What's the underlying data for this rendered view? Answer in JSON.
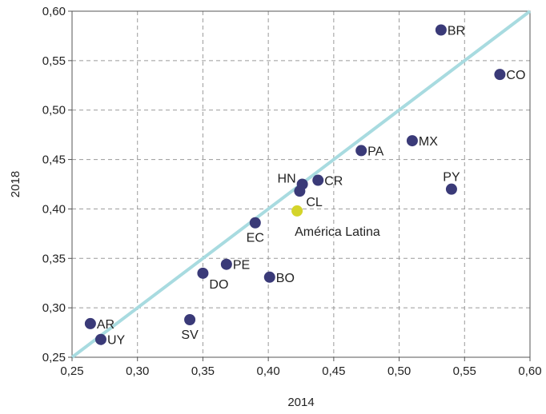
{
  "chart_data": {
    "type": "scatter",
    "xlabel": "2014",
    "ylabel": "2018",
    "xlim": [
      0.25,
      0.6
    ],
    "ylim": [
      0.25,
      0.6
    ],
    "xticks": [
      "0,25",
      "0,30",
      "0,35",
      "0,40",
      "0,45",
      "0,50",
      "0,55",
      "0,60"
    ],
    "yticks": [
      "0,25",
      "0,30",
      "0,35",
      "0,40",
      "0,45",
      "0,50",
      "0,55",
      "0,60"
    ],
    "grid": true,
    "reference_line": {
      "from": [
        0.25,
        0.25
      ],
      "to": [
        0.6,
        0.6
      ],
      "color": "#a8dbe0"
    },
    "colors": {
      "country": "#3a3a78",
      "highlight": "#d4d42a"
    },
    "points": [
      {
        "label": "BR",
        "x": 0.532,
        "y": 0.581,
        "pos": "right"
      },
      {
        "label": "CO",
        "x": 0.577,
        "y": 0.536,
        "pos": "right"
      },
      {
        "label": "MX",
        "x": 0.51,
        "y": 0.469,
        "pos": "right"
      },
      {
        "label": "PA",
        "x": 0.471,
        "y": 0.459,
        "pos": "right"
      },
      {
        "label": "PY",
        "x": 0.54,
        "y": 0.42,
        "pos": "above"
      },
      {
        "label": "CR",
        "x": 0.438,
        "y": 0.429,
        "pos": "right"
      },
      {
        "label": "HN",
        "x": 0.426,
        "y": 0.425,
        "pos": "left"
      },
      {
        "label": "CL",
        "x": 0.424,
        "y": 0.418,
        "pos": "right-below"
      },
      {
        "label": "América Latina",
        "x": 0.422,
        "y": 0.398,
        "pos": "below-right",
        "highlight": true
      },
      {
        "label": "EC",
        "x": 0.39,
        "y": 0.386,
        "pos": "below"
      },
      {
        "label": "PE",
        "x": 0.368,
        "y": 0.344,
        "pos": "right"
      },
      {
        "label": "DO",
        "x": 0.35,
        "y": 0.335,
        "pos": "right-below"
      },
      {
        "label": "BO",
        "x": 0.401,
        "y": 0.331,
        "pos": "right"
      },
      {
        "label": "SV",
        "x": 0.34,
        "y": 0.288,
        "pos": "below"
      },
      {
        "label": "AR",
        "x": 0.264,
        "y": 0.284,
        "pos": "right"
      },
      {
        "label": "UY",
        "x": 0.272,
        "y": 0.268,
        "pos": "right"
      }
    ]
  }
}
